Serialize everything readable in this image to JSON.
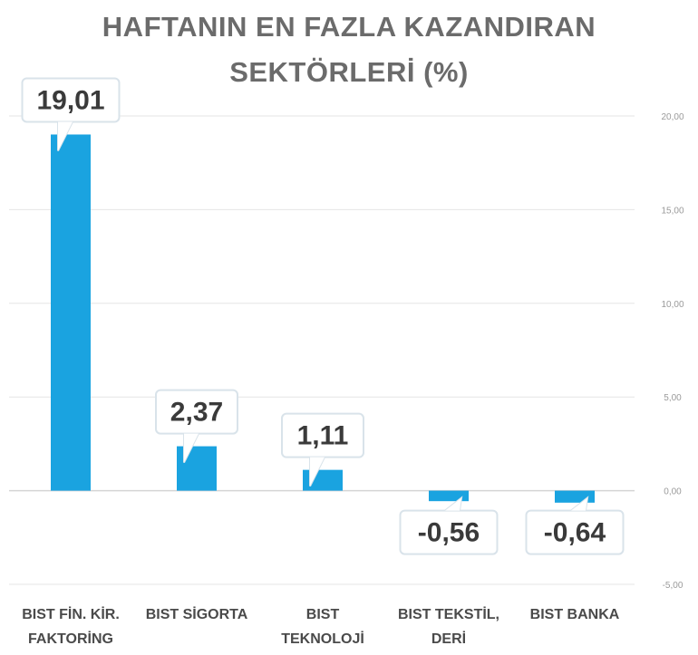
{
  "chart_data": {
    "type": "bar",
    "title_lines": [
      "HAFTANIN EN FAZLA KAZANDIRAN",
      "SEKTÖRLERİ (%)"
    ],
    "categories": [
      [
        "BIST FİN. KİR.",
        "FAKTORİNG"
      ],
      [
        "BIST SİGORTA"
      ],
      [
        "BIST",
        "TEKNOLOJİ"
      ],
      [
        "BIST TEKSTİL,",
        "DERİ"
      ],
      [
        "BIST BANKA"
      ]
    ],
    "values": [
      19.01,
      2.37,
      1.11,
      -0.56,
      -0.64
    ],
    "value_labels": [
      "19,01",
      "2,37",
      "1,11",
      "-0,56",
      "-0,64"
    ],
    "ylim": [
      -5,
      20
    ],
    "y_ticks": [
      20,
      15,
      10,
      5,
      0,
      -5
    ],
    "y_tick_labels": [
      "20,00",
      "15,00",
      "10,00",
      "5,00",
      "0,00",
      "-5,00"
    ],
    "y_axis_side": "right",
    "grid": true,
    "bar_color": "#1aa3e0"
  }
}
